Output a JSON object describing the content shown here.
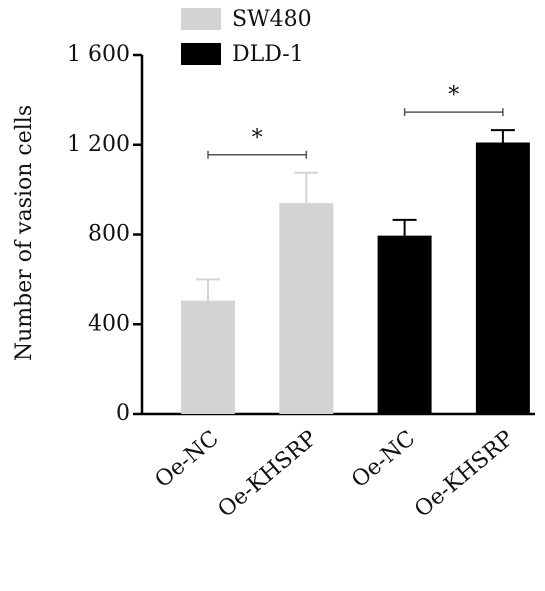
{
  "chart_data": {
    "type": "bar",
    "ylabel": "Number of vasion cells",
    "categories": [
      "Oe-NC",
      "Oe-KHSRP",
      "Oe-NC",
      "Oe-KHSRP"
    ],
    "series": [
      {
        "name": "SW480",
        "color": "#d3d3d3",
        "values": [
          505,
          940,
          null,
          null
        ],
        "errors": [
          95,
          135,
          null,
          null
        ]
      },
      {
        "name": "DLD-1",
        "color": "#000000",
        "values": [
          null,
          null,
          795,
          1210
        ],
        "errors": [
          null,
          null,
          70,
          55
        ]
      }
    ],
    "annotations": [
      "*",
      "*"
    ],
    "ylim": [
      0,
      1600
    ],
    "yticks": [
      0,
      400,
      800,
      {
        "value": 1200,
        "label": "1 200"
      },
      {
        "value": 1600,
        "label": "1 600"
      }
    ],
    "legend": "top"
  }
}
